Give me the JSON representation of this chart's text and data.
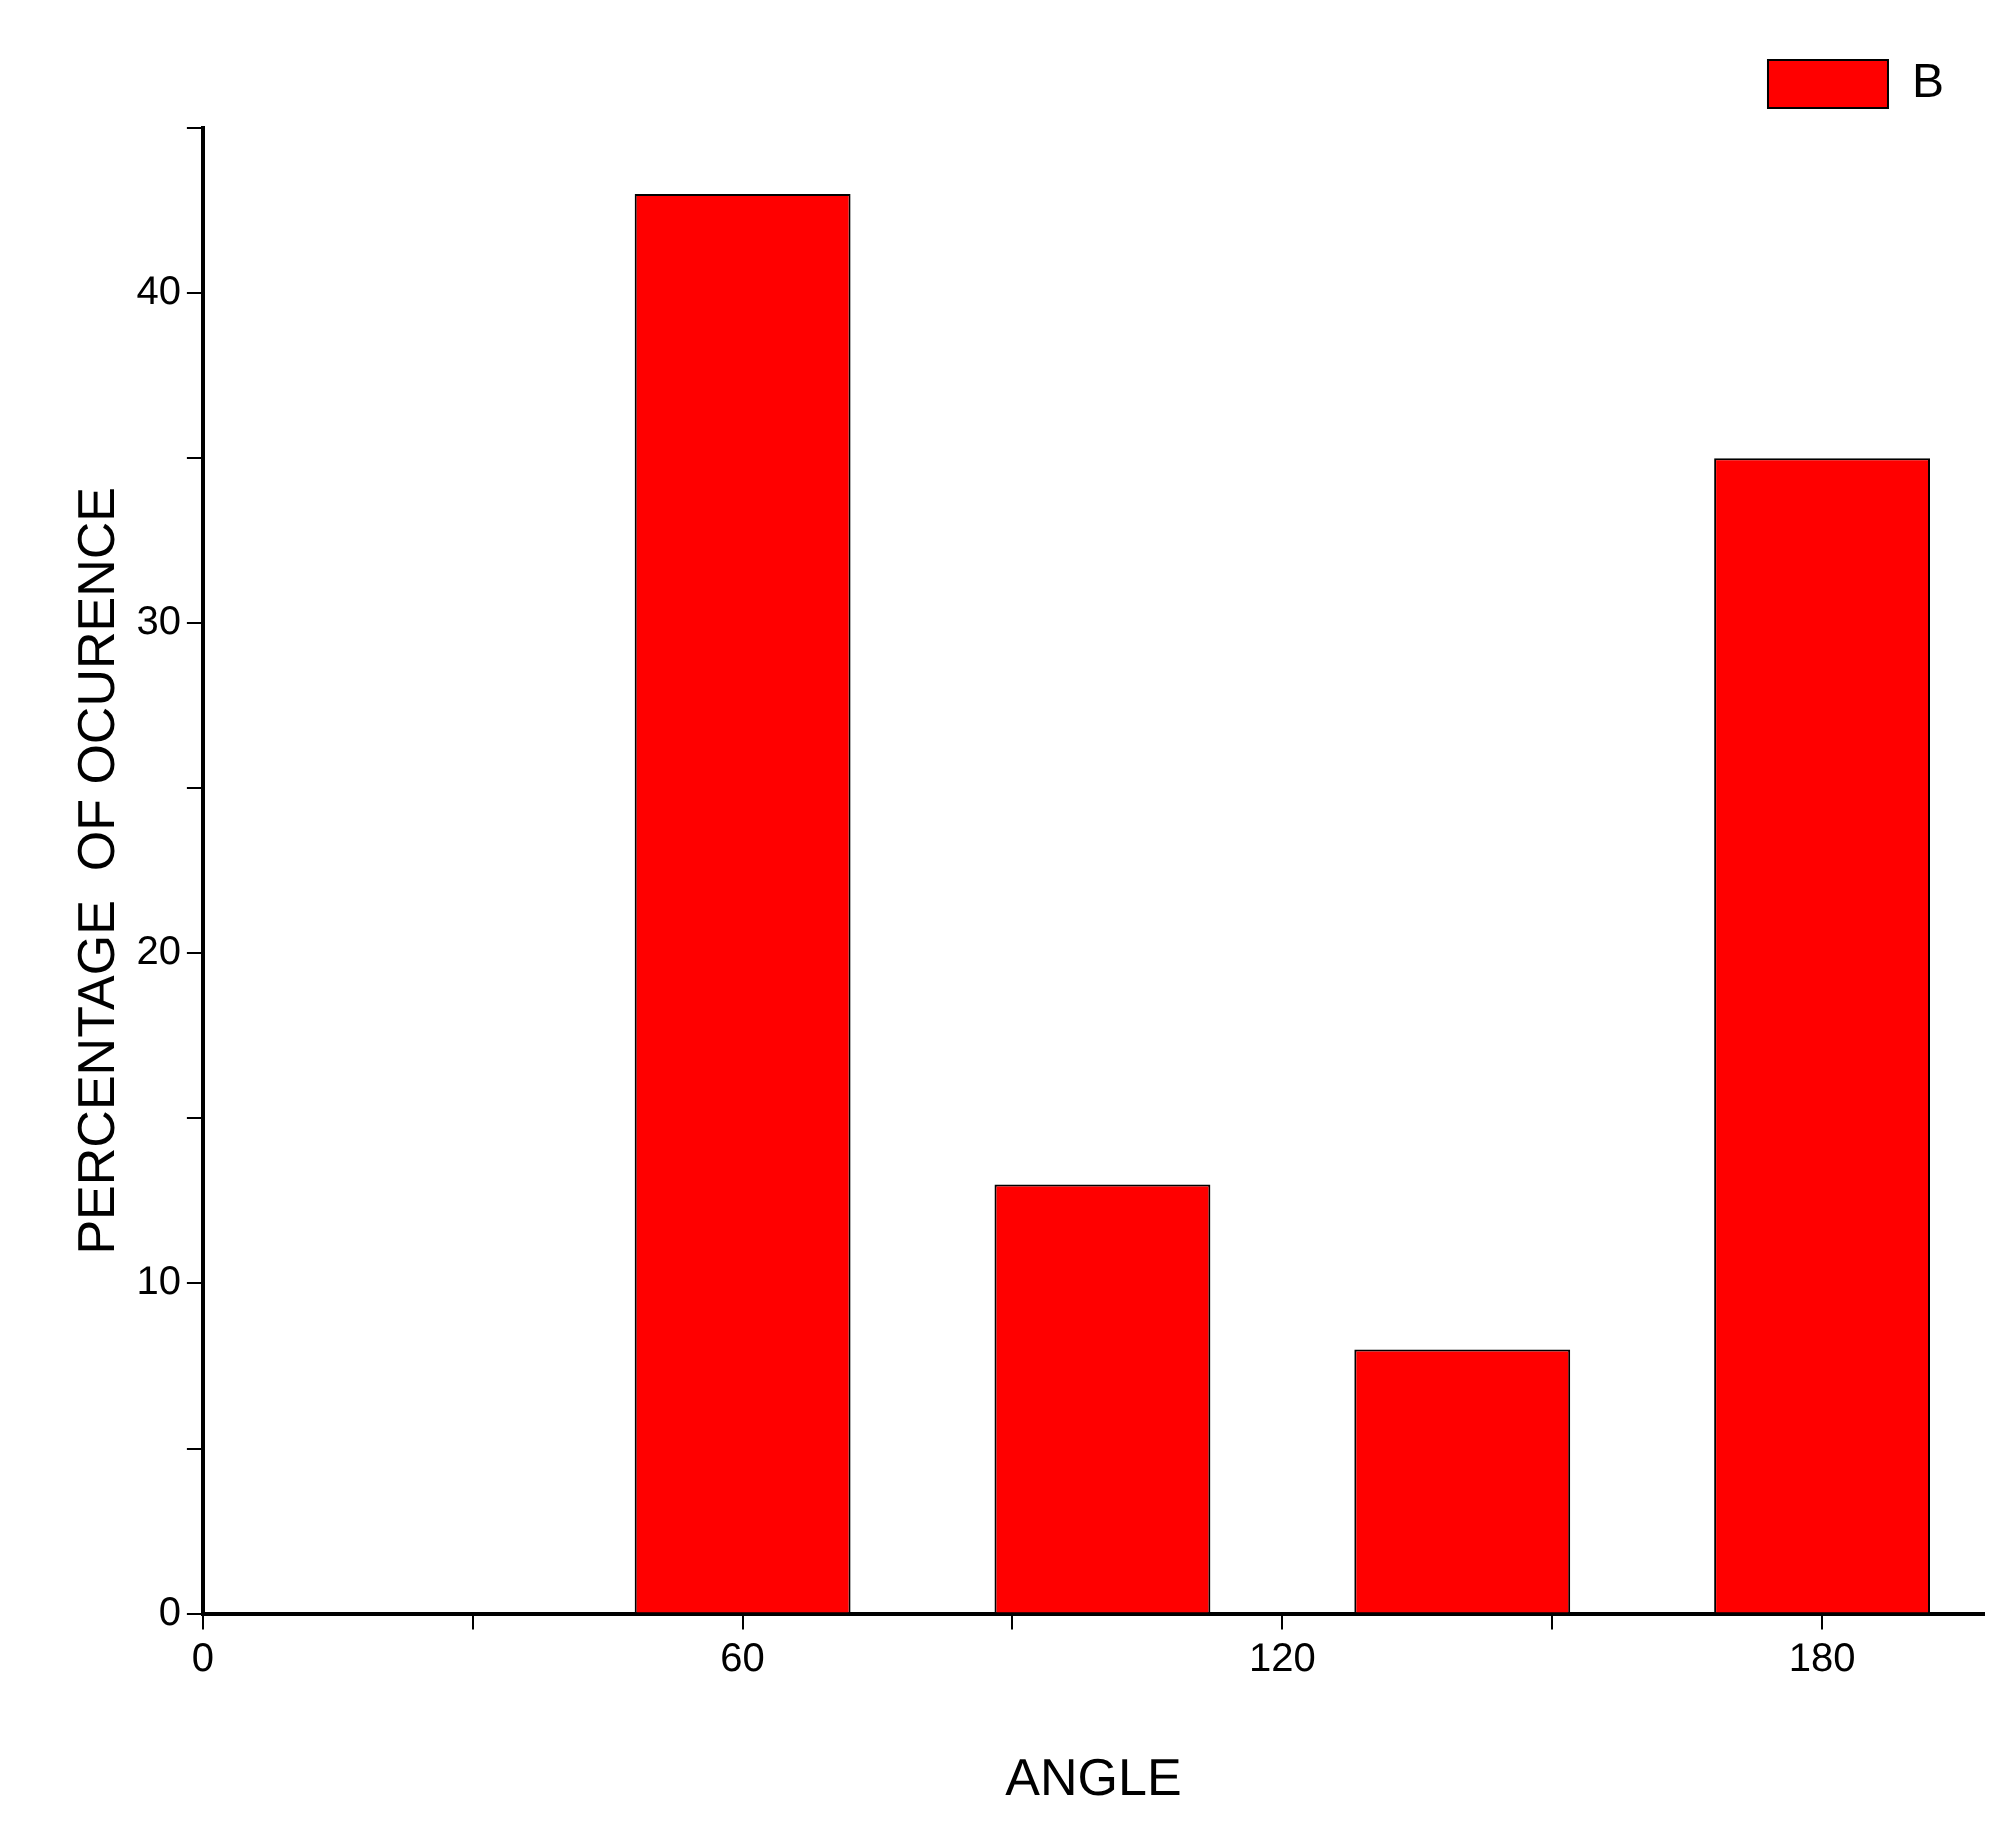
{
  "chart_data": {
    "type": "bar",
    "xlabel": "ANGLE",
    "ylabel": "PERCENTAGE  OF OCURENCE",
    "x": [
      60,
      100,
      140,
      180
    ],
    "series": [
      {
        "name": "B",
        "color": "#ff0000",
        "values": [
          43,
          13,
          8,
          35
        ]
      }
    ],
    "xlim": [
      0,
      198
    ],
    "xticks": [
      0,
      {
        "value": 30,
        "label": null
      },
      60,
      {
        "value": 90,
        "label": null
      },
      120,
      {
        "value": 150,
        "label": null
      },
      180
    ],
    "ylim": [
      0,
      45
    ],
    "yticks": [
      0,
      {
        "value": 5,
        "label": null
      },
      10,
      {
        "value": 15,
        "label": null
      },
      20,
      {
        "value": 25,
        "label": null
      },
      30,
      {
        "value": 35,
        "label": null
      },
      40,
      {
        "value": 45,
        "label": null
      }
    ],
    "grid": false,
    "legend": "top right"
  }
}
